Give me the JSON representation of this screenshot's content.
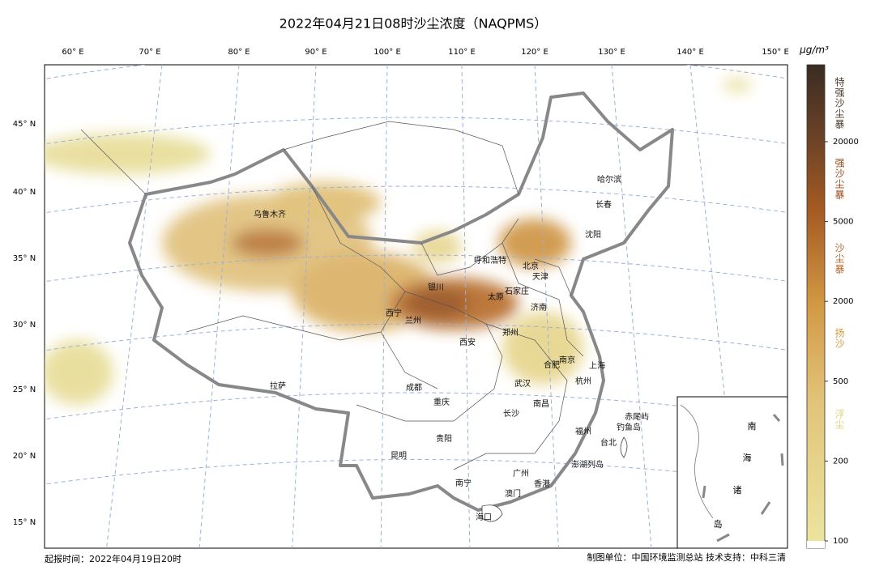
{
  "title": "2022年04月21日08时沙尘浓度（NAQPMS）",
  "lon_labels": [
    "60° E",
    "70° E",
    "80° E",
    "90° E",
    "100° E",
    "110° E",
    "120° E",
    "130° E",
    "140° E",
    "150° E"
  ],
  "lat_labels": [
    "45° N",
    "40° N",
    "35° N",
    "30° N",
    "25° N",
    "20° N",
    "15° N"
  ],
  "cities": [
    "乌鲁木齐",
    "哈尔滨",
    "长春",
    "沈阳",
    "呼和浩特",
    "北京",
    "天津",
    "石家庄",
    "银川",
    "太原",
    "济南",
    "西宁",
    "兰州",
    "郑州",
    "西安",
    "合肥",
    "南京",
    "上海",
    "拉萨",
    "成都",
    "武汉",
    "杭州",
    "重庆",
    "南昌",
    "长沙",
    "赤尾屿",
    "钓鱼岛",
    "贵阳",
    "福州",
    "台北",
    "昆明",
    "澎湖列岛",
    "广州",
    "南宁",
    "香港",
    "澳门",
    "海口"
  ],
  "inset_label": [
    "南",
    "海",
    "诸",
    "岛"
  ],
  "colorbar": {
    "unit": "μg/m³",
    "ticks": [
      100,
      200,
      500,
      2000,
      5000,
      20000
    ],
    "levels": [
      "浮尘",
      "扬沙",
      "沙尘暴",
      "强沙尘暴",
      "特强沙尘暴"
    ]
  },
  "footer": {
    "left": "起报时间：2022年04月19日20时",
    "right": "制图单位：中国环境监测总站  技术支持：中科三清"
  }
}
